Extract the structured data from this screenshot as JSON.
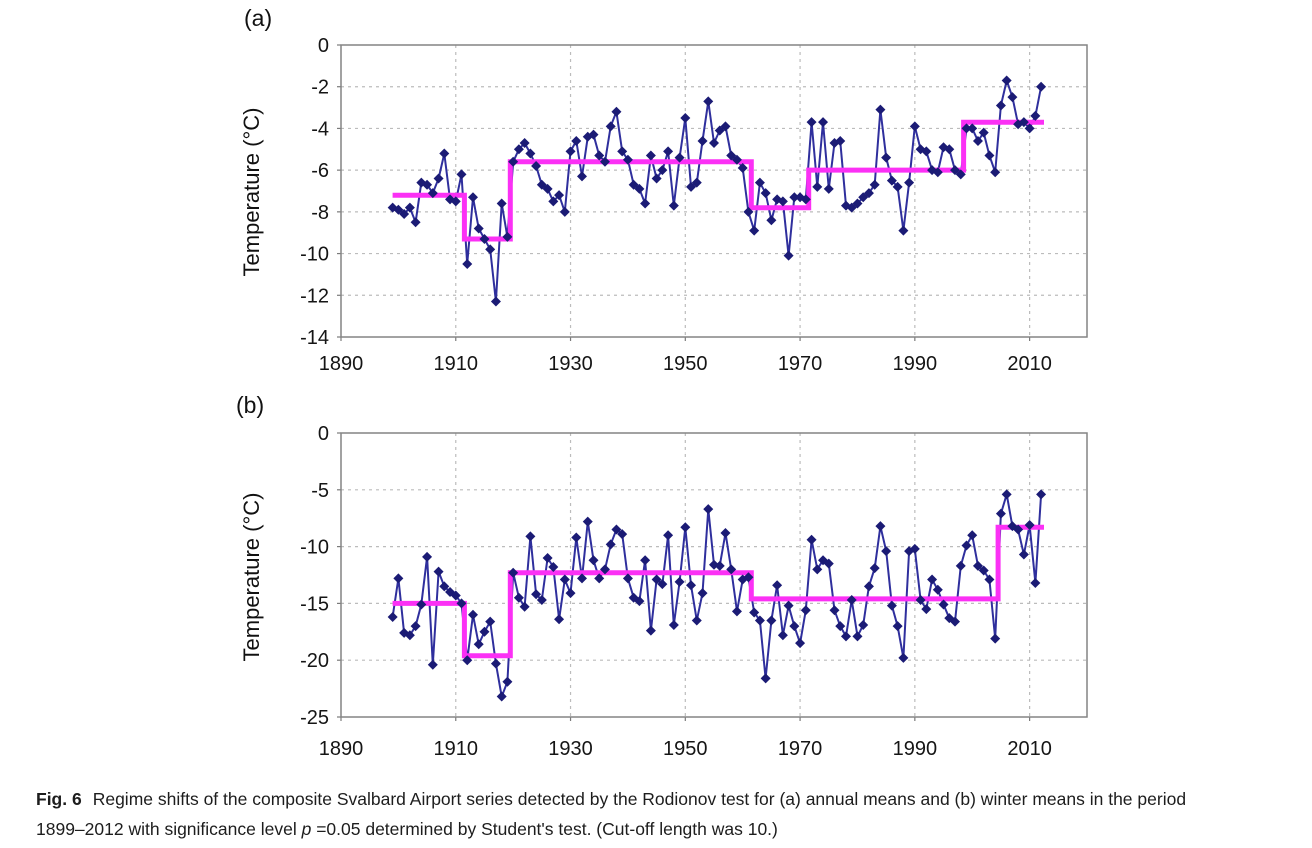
{
  "figure": {
    "panel_a_label": "(a)",
    "panel_b_label": "(b)",
    "y_axis_title": "Temperature (°C)"
  },
  "caption": {
    "fig_label": "Fig. 6",
    "line1": "Regime shifts of the composite Svalbard Airport series detected by the Rodionov test for (a) annual means and (b) winter means in the period",
    "line2_pre": "1899–2012 with significance level ",
    "line2_italic": "p",
    "line2_post": " =0.05 determined by Student's test. (Cut-off length was 10.)"
  },
  "colors": {
    "series_line": "#2f2f9d",
    "marker": "#1b1b75",
    "regime_line": "#fb30f5",
    "grid": "#bcbcbc",
    "border": "#848484",
    "tick": "#7a7a7a"
  },
  "chart_data": [
    {
      "type": "line",
      "panel_label": "(a)",
      "title": "",
      "xlabel": "",
      "ylabel": "Temperature (°C)",
      "series_name": "Annual mean temperature",
      "xlim": [
        1890,
        2020
      ],
      "ylim": [
        -14,
        0
      ],
      "xticks": [
        1890,
        1910,
        1930,
        1950,
        1970,
        1990,
        2010
      ],
      "yticks": [
        0,
        -2,
        -4,
        -6,
        -8,
        -10,
        -12,
        -14
      ],
      "grid": true,
      "legend": "none",
      "year_start": 1899,
      "year_end": 2012,
      "values": [
        -7.8,
        -7.9,
        -8.1,
        -7.8,
        -8.5,
        -6.6,
        -6.7,
        -7.1,
        -6.4,
        -5.2,
        -7.4,
        -7.5,
        -6.2,
        -10.5,
        -7.3,
        -8.8,
        -9.3,
        -9.8,
        -12.3,
        -7.6,
        -9.2,
        -5.6,
        -5.0,
        -4.7,
        -5.2,
        -5.8,
        -6.7,
        -6.9,
        -7.5,
        -7.2,
        -8.0,
        -5.1,
        -4.6,
        -6.3,
        -4.4,
        -4.3,
        -5.3,
        -5.6,
        -3.9,
        -3.2,
        -5.1,
        -5.5,
        -6.7,
        -6.9,
        -7.6,
        -5.3,
        -6.4,
        -6.0,
        -5.1,
        -7.7,
        -5.4,
        -3.5,
        -6.8,
        -6.6,
        -4.6,
        -2.7,
        -4.7,
        -4.1,
        -3.9,
        -5.3,
        -5.5,
        -5.9,
        -8.0,
        -8.9,
        -6.6,
        -7.1,
        -8.4,
        -7.4,
        -7.5,
        -10.1,
        -7.3,
        -7.3,
        -7.4,
        -3.7,
        -6.8,
        -3.7,
        -6.9,
        -4.7,
        -4.6,
        -7.7,
        -7.8,
        -7.6,
        -7.3,
        -7.1,
        -6.7,
        -3.1,
        -5.4,
        -6.5,
        -6.8,
        -8.9,
        -6.6,
        -3.9,
        -5.0,
        -5.1,
        -6.0,
        -6.1,
        -4.9,
        -5.0,
        -6.0,
        -6.2,
        -4.0,
        -4.0,
        -4.6,
        -4.2,
        -5.3,
        -6.1,
        -2.9,
        -1.7,
        -2.5,
        -3.8,
        -3.7,
        -4.0,
        -3.4,
        -2.0
      ],
      "regimes": [
        {
          "start": 1899,
          "end": 1911,
          "mean": -7.2
        },
        {
          "start": 1912,
          "end": 1919,
          "mean": -9.3
        },
        {
          "start": 1920,
          "end": 1961,
          "mean": -5.6
        },
        {
          "start": 1962,
          "end": 1971,
          "mean": -7.8
        },
        {
          "start": 1972,
          "end": 1998,
          "mean": -6.0
        },
        {
          "start": 1999,
          "end": 2012,
          "mean": -3.7
        }
      ]
    },
    {
      "type": "line",
      "panel_label": "(b)",
      "title": "",
      "xlabel": "",
      "ylabel": "Temperature (°C)",
      "series_name": "Winter mean temperature",
      "xlim": [
        1890,
        2020
      ],
      "ylim": [
        -25,
        0
      ],
      "xticks": [
        1890,
        1910,
        1930,
        1950,
        1970,
        1990,
        2010
      ],
      "yticks": [
        0,
        -5,
        -10,
        -15,
        -20,
        -25
      ],
      "grid": true,
      "legend": "none",
      "year_start": 1899,
      "year_end": 2012,
      "values": [
        -16.2,
        -12.8,
        -17.6,
        -17.8,
        -17.0,
        -15.1,
        -10.9,
        -20.4,
        -12.2,
        -13.5,
        -14.0,
        -14.3,
        -15.0,
        -20.0,
        -16.0,
        -18.6,
        -17.5,
        -16.6,
        -20.3,
        -23.2,
        -21.9,
        -12.3,
        -14.5,
        -15.3,
        -9.1,
        -14.2,
        -14.7,
        -11.0,
        -11.8,
        -16.4,
        -12.9,
        -14.1,
        -9.2,
        -12.8,
        -7.8,
        -11.2,
        -12.8,
        -12.0,
        -9.8,
        -8.5,
        -8.9,
        -12.8,
        -14.5,
        -14.8,
        -11.2,
        -17.4,
        -12.9,
        -13.3,
        -9.0,
        -16.9,
        -13.1,
        -8.3,
        -13.4,
        -16.5,
        -14.1,
        -6.7,
        -11.6,
        -11.7,
        -8.8,
        -12.0,
        -15.7,
        -12.9,
        -12.7,
        -15.8,
        -16.5,
        -21.6,
        -16.5,
        -13.4,
        -17.8,
        -15.2,
        -17.0,
        -18.5,
        -15.6,
        -9.4,
        -12.0,
        -11.2,
        -11.5,
        -15.6,
        -17.0,
        -17.9,
        -14.7,
        -17.9,
        -16.9,
        -13.5,
        -11.9,
        -8.2,
        -10.4,
        -15.2,
        -17.0,
        -19.8,
        -10.4,
        -10.2,
        -14.7,
        -15.5,
        -12.9,
        -13.8,
        -15.1,
        -16.3,
        -16.6,
        -11.7,
        -9.9,
        -9.0,
        -11.7,
        -12.1,
        -12.9,
        -18.1,
        -7.1,
        -5.4,
        -8.2,
        -8.5,
        -10.7,
        -8.1,
        -13.2,
        -5.4
      ],
      "regimes": [
        {
          "start": 1899,
          "end": 1911,
          "mean": -15.0
        },
        {
          "start": 1912,
          "end": 1919,
          "mean": -19.6
        },
        {
          "start": 1920,
          "end": 1961,
          "mean": -12.3
        },
        {
          "start": 1962,
          "end": 2004,
          "mean": -14.6
        },
        {
          "start": 2005,
          "end": 2012,
          "mean": -8.3
        }
      ]
    }
  ]
}
